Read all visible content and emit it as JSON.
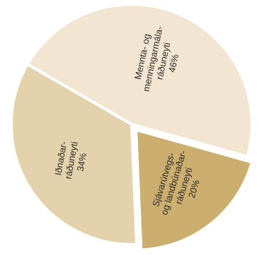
{
  "chart_data": {
    "type": "pie",
    "title": "",
    "slices": [
      {
        "label_lines": [
          "Mennta- og",
          "menningarmála-",
          "ráðuneyti"
        ],
        "value": 46,
        "value_label": "46%",
        "color": "#f2e6d2"
      },
      {
        "label_lines": [
          "Sjávarútvegs-",
          "og landbúnaðar-",
          "ráðuneyti"
        ],
        "value": 20,
        "value_label": "20%",
        "color": "#ccaf6e"
      },
      {
        "label_lines": [
          "Iðnaðar-",
          "ráðuneyti"
        ],
        "value": 34,
        "value_label": "34%",
        "color": "#e3d2ab"
      }
    ]
  }
}
